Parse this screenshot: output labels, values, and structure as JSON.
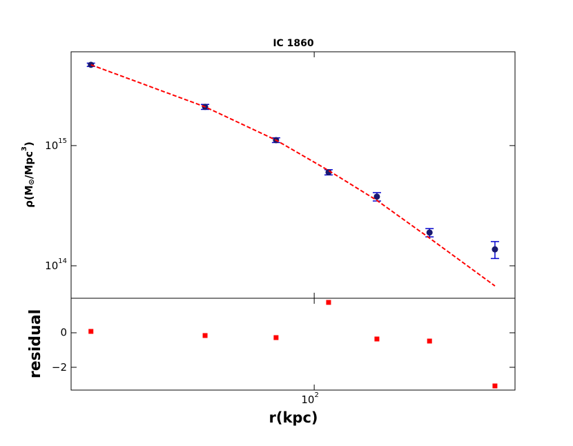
{
  "chart_data": [
    {
      "type": "scatter",
      "title": "IC 1860",
      "ylabel": [
        "ρ(M",
        "⊙",
        "/Mpc",
        "3",
        ")"
      ],
      "log": true,
      "xlim": [
        9.4,
        705
      ],
      "ylim": [
        53700000000000.0,
        6030000000000000.0
      ],
      "yticks": [
        {
          "value": 100000000000000.0,
          "label": "10",
          "exp": "14"
        },
        {
          "value": 1000000000000000.0,
          "label": "10",
          "exp": "15"
        }
      ],
      "x": [
        11.4,
        34.6,
        69,
        115,
        184,
        307,
        580
      ],
      "series": [
        {
          "color": "#191970",
          "ecolor": "#0000cd",
          "values": [
            4700000000000000.0,
            2100000000000000.0,
            1110000000000000.0,
            600000000000000.0,
            376000000000000.0,
            189000000000000.0,
            137000000000000.0
          ],
          "errors": [
            150000000000000.0,
            100000000000000.0,
            50000000000000.0,
            30000000000000.0,
            30000000000000.0,
            15000000000000.0,
            22000000000000.0
          ]
        },
        {
          "color": "#ff0000",
          "style": "dashed",
          "values": [
            4700000000000000.0,
            2100000000000000.0,
            1110000000000000.0,
            620000000000000.0,
            350000000000000.0,
            170000000000000.0,
            68000000000000.0
          ]
        }
      ]
    },
    {
      "type": "scatter",
      "xlabel": "r(kpc)",
      "ylabel": "residual",
      "xlim": [
        9.4,
        705
      ],
      "ylim": [
        -3.32,
        2.0
      ],
      "xticks": [
        {
          "value": 100,
          "label": "10",
          "exp": "2"
        }
      ],
      "yticks": [
        0,
        {
          "value": -2,
          "label": "−2"
        }
      ],
      "x": [
        11.4,
        34.6,
        69,
        115,
        184,
        307,
        580
      ],
      "series": [
        {
          "color": "#ff0000",
          "values": [
            0.08,
            -0.16,
            -0.28,
            1.76,
            -0.36,
            -0.48,
            -3.08
          ]
        }
      ]
    }
  ]
}
